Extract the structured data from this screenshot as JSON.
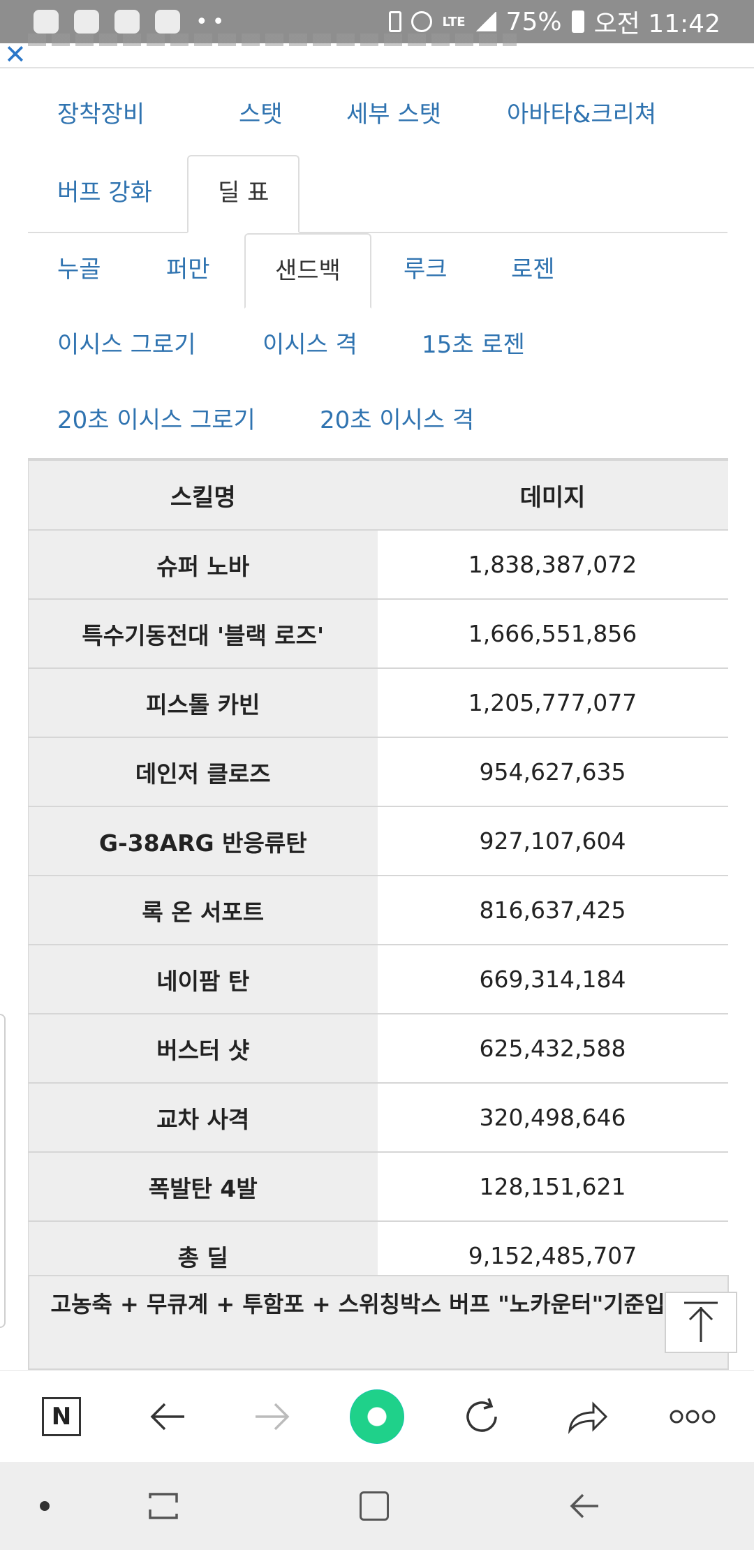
{
  "status_bar": {
    "battery": "75%",
    "time": "오전 11:42",
    "network": "LTE"
  },
  "tabs_primary": [
    {
      "label": "장착장비"
    },
    {
      "label": "스탯"
    },
    {
      "label": "세부 스탯"
    },
    {
      "label": "아바타&크리쳐"
    },
    {
      "label": "버프 강화"
    },
    {
      "label": "딜 표"
    }
  ],
  "tabs_secondary": [
    {
      "label": "누골"
    },
    {
      "label": "퍼만"
    },
    {
      "label": "샌드백"
    },
    {
      "label": "루크"
    },
    {
      "label": "로젠"
    },
    {
      "label": "이시스 그로기"
    },
    {
      "label": "이시스 격"
    },
    {
      "label": "15초 로젠"
    },
    {
      "label": "20초 이시스 그로기"
    },
    {
      "label": "20초 이시스 격"
    }
  ],
  "table": {
    "headers": [
      "스킬명",
      "데미지"
    ],
    "rows": [
      {
        "skill": "슈퍼 노바",
        "damage": "1,838,387,072"
      },
      {
        "skill": "특수기동전대 '블랙 로즈'",
        "damage": "1,666,551,856"
      },
      {
        "skill": "피스톨 카빈",
        "damage": "1,205,777,077"
      },
      {
        "skill": "데인저 클로즈",
        "damage": "954,627,635"
      },
      {
        "skill": "G-38ARG 반응류탄",
        "damage": "927,107,604"
      },
      {
        "skill": "록 온 서포트",
        "damage": "816,637,425"
      },
      {
        "skill": "네이팜 탄",
        "damage": "669,314,184"
      },
      {
        "skill": "버스터 샷",
        "damage": "625,432,588"
      },
      {
        "skill": "교차 사격",
        "damage": "320,498,646"
      },
      {
        "skill": "폭발탄 4발",
        "damage": "128,151,621"
      },
      {
        "skill": "총 딜",
        "damage": "9,152,485,707"
      }
    ],
    "note": "고농축 + 무큐계 + 투함포 + 스위칭박스 버프 \"노카운터\"기준입니다"
  },
  "toolbar": {
    "n_label": "N"
  },
  "colors": {
    "tab_text": "#2f73b0",
    "status_bar": "#8e8e8e",
    "accent_green": "#1fd18a"
  }
}
